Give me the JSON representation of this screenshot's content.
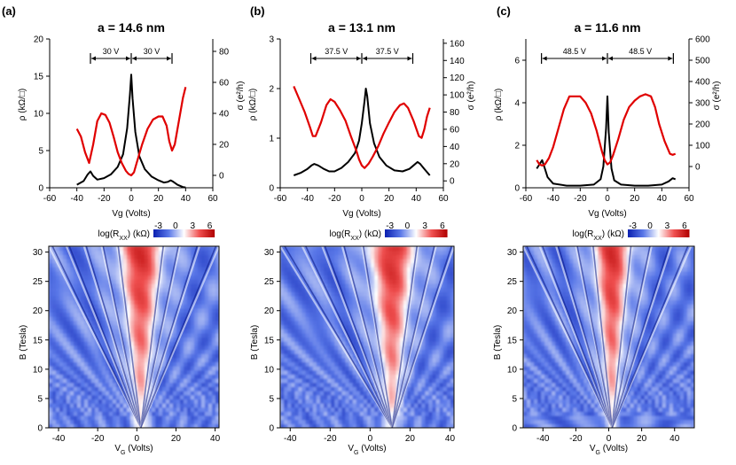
{
  "chart_data": [
    {
      "type": "line",
      "panel": "(a)",
      "title": "a = 14.6 nm",
      "xlabel": "Vg (Volts)",
      "ylabel_left": "ρ (kΩ/□)",
      "ylabel_right": "σ (e²/h)",
      "xlim": [
        -60,
        60
      ],
      "ylim_left": [
        0,
        20
      ],
      "ylim_right": [
        -8,
        88
      ],
      "xticks": [
        -60,
        -40,
        -20,
        0,
        20,
        40,
        60
      ],
      "yticks_left": [
        0,
        5,
        10,
        15,
        20
      ],
      "yticks_right": [
        0,
        20,
        40,
        60,
        80
      ],
      "series": [
        {
          "color": "#000000",
          "axis": "left",
          "x": [
            -40,
            -35,
            -32,
            -30,
            -28,
            -25,
            -20,
            -15,
            -10,
            -6,
            -3,
            -1,
            0,
            1,
            3,
            6,
            10,
            15,
            20,
            24,
            27,
            29,
            31,
            34,
            38,
            40
          ],
          "y": [
            0.4,
            0.9,
            1.8,
            2.2,
            1.6,
            1.1,
            1.3,
            1.8,
            2.8,
            4.5,
            8.0,
            12.5,
            15.2,
            12.0,
            7.5,
            4.2,
            2.5,
            1.5,
            1.0,
            0.7,
            0.8,
            1.0,
            0.8,
            0.4,
            0.1,
            0.05
          ]
        },
        {
          "color": "#e00000",
          "axis": "right",
          "x": [
            -40,
            -37,
            -34,
            -31,
            -28,
            -25,
            -22,
            -19,
            -16,
            -13,
            -10,
            -7,
            -4,
            -2,
            0,
            2,
            4,
            8,
            12,
            16,
            20,
            23,
            26,
            28,
            30,
            32,
            35,
            38,
            40
          ],
          "y": [
            30,
            25,
            15,
            8,
            20,
            35,
            40,
            39,
            34,
            25,
            15,
            8,
            3,
            1,
            0,
            2,
            8,
            20,
            30,
            36,
            38,
            38,
            32,
            22,
            16,
            20,
            35,
            50,
            57
          ]
        }
      ],
      "annotations": [
        {
          "text": "30 V"
        },
        {
          "text": "30 V"
        }
      ]
    },
    {
      "type": "line",
      "panel": "(b)",
      "title": "a = 13.1 nm",
      "xlabel": "Vg (Volts)",
      "ylabel_left": "ρ (kΩ/□)",
      "ylabel_right": "σ (e²/h)",
      "xlim": [
        -60,
        60
      ],
      "ylim_left": [
        0,
        3
      ],
      "ylim_right": [
        -8,
        165
      ],
      "xticks": [
        -60,
        -40,
        -20,
        0,
        20,
        40,
        60
      ],
      "yticks_left": [
        0,
        1,
        2,
        3
      ],
      "yticks_right": [
        0,
        20,
        40,
        60,
        80,
        100,
        120,
        140,
        160
      ],
      "series": [
        {
          "color": "#000000",
          "axis": "left",
          "x": [
            -50,
            -45,
            -40,
            -37,
            -35,
            -32,
            -28,
            -24,
            -20,
            -15,
            -10,
            -5,
            -2,
            0,
            2,
            3,
            4,
            6,
            9,
            13,
            18,
            24,
            30,
            35,
            38,
            41,
            43,
            46,
            50
          ],
          "y": [
            0.25,
            0.3,
            0.38,
            0.45,
            0.48,
            0.45,
            0.38,
            0.33,
            0.33,
            0.4,
            0.52,
            0.7,
            0.95,
            1.3,
            1.75,
            2.0,
            1.85,
            1.3,
            0.9,
            0.62,
            0.45,
            0.35,
            0.33,
            0.38,
            0.45,
            0.52,
            0.48,
            0.38,
            0.25
          ]
        },
        {
          "color": "#e00000",
          "axis": "right",
          "x": [
            -50,
            -46,
            -42,
            -38,
            -36,
            -34,
            -30,
            -26,
            -23,
            -20,
            -16,
            -12,
            -8,
            -4,
            -2,
            0,
            2,
            5,
            8,
            12,
            16,
            20,
            24,
            28,
            31,
            34,
            38,
            42,
            44,
            46,
            48,
            50
          ],
          "y": [
            110,
            95,
            80,
            62,
            52,
            52,
            68,
            88,
            95,
            92,
            82,
            70,
            52,
            35,
            25,
            18,
            15,
            20,
            28,
            40,
            55,
            68,
            80,
            88,
            90,
            85,
            70,
            52,
            50,
            60,
            75,
            85
          ]
        }
      ],
      "annotations": [
        {
          "text": "37.5 V"
        },
        {
          "text": "37.5 V"
        }
      ]
    },
    {
      "type": "line",
      "panel": "(c)",
      "title": "a = 11.6 nm",
      "xlabel": "Vg (Volts)",
      "ylabel_left": "ρ (kΩ/□)",
      "ylabel_right": "σ (e²/h)",
      "xlim": [
        -60,
        60
      ],
      "ylim_left": [
        0,
        7
      ],
      "ylim_right": [
        -100,
        600
      ],
      "xticks": [
        -60,
        -40,
        -20,
        0,
        20,
        40,
        60
      ],
      "yticks_left": [
        0,
        2,
        4,
        6
      ],
      "yticks_right": [
        0,
        100,
        200,
        300,
        400,
        500,
        600
      ],
      "series": [
        {
          "color": "#000000",
          "axis": "left",
          "x": [
            -52,
            -50,
            -48,
            -46,
            -44,
            -40,
            -30,
            -20,
            -10,
            -5,
            -3,
            -1,
            0,
            1,
            3,
            5,
            10,
            20,
            30,
            40,
            45,
            48,
            50
          ],
          "y": [
            0.9,
            1.1,
            1.3,
            0.9,
            0.5,
            0.2,
            0.1,
            0.1,
            0.15,
            0.4,
            1.0,
            2.8,
            4.3,
            2.6,
            0.9,
            0.35,
            0.15,
            0.1,
            0.1,
            0.15,
            0.3,
            0.45,
            0.4
          ]
        },
        {
          "color": "#e00000",
          "axis": "right",
          "x": [
            -52,
            -50,
            -48,
            -46,
            -43,
            -40,
            -36,
            -32,
            -28,
            -24,
            -20,
            -16,
            -12,
            -8,
            -4,
            -2,
            0,
            2,
            4,
            8,
            12,
            16,
            20,
            24,
            28,
            32,
            35,
            38,
            42,
            46,
            48,
            50
          ],
          "y": [
            30,
            10,
            5,
            10,
            40,
            90,
            180,
            270,
            330,
            330,
            330,
            300,
            250,
            170,
            70,
            30,
            10,
            20,
            50,
            130,
            220,
            280,
            310,
            330,
            340,
            330,
            280,
            200,
            120,
            60,
            55,
            60
          ]
        }
      ],
      "annotations": [
        {
          "text": "48.5  V"
        },
        {
          "text": "48.5 V"
        }
      ]
    },
    {
      "type": "heatmap",
      "panel": "(a)",
      "colorbar_label": "log(R",
      "colorbar_sub": "XX",
      "colorbar_unit": ") (kΩ)",
      "colorbar_ticks": [
        "-3",
        "0",
        "3",
        "6"
      ],
      "xlabel": "V",
      "xlabel_sub": "G",
      "xlabel_unit": " (Volts)",
      "ylabel": "B (Tesla)",
      "xlim": [
        -45,
        42
      ],
      "ylim": [
        0,
        31
      ],
      "xticks": [
        -40,
        -20,
        0,
        20,
        40
      ],
      "yticks": [
        0,
        5,
        10,
        15,
        20,
        25,
        30
      ],
      "cnp": 2,
      "fans": [
        -45,
        -36,
        -27,
        -18,
        -10,
        14,
        22,
        32,
        42
      ]
    },
    {
      "type": "heatmap",
      "panel": "(b)",
      "colorbar_label": "log(R",
      "colorbar_sub": "XX",
      "colorbar_unit": ") (kΩ)",
      "colorbar_ticks": [
        "-3",
        "0",
        "3",
        "6"
      ],
      "xlabel": "V",
      "xlabel_sub": "G",
      "xlabel_unit": " (Volts)",
      "ylabel": "B (Tesla)",
      "xlim": [
        -45,
        42
      ],
      "ylim": [
        0,
        31
      ],
      "xticks": [
        -40,
        -20,
        0,
        20,
        40
      ],
      "yticks": [
        0,
        5,
        10,
        15,
        20,
        25,
        30
      ],
      "cnp": 11,
      "fans": [
        -45,
        -34,
        -24,
        -14,
        -4,
        24,
        33,
        42
      ]
    },
    {
      "type": "heatmap",
      "panel": "(c)",
      "colorbar_label": "log(R",
      "colorbar_sub": "XX",
      "colorbar_unit": ") (kΩ)",
      "colorbar_ticks": [
        "-3",
        "0",
        "3",
        "6"
      ],
      "xlabel": "V",
      "xlabel_sub": "G",
      "xlabel_unit": " (Volts)",
      "ylabel": "B (Tesla)",
      "xlim": [
        -52,
        52
      ],
      "ylim": [
        0,
        31
      ],
      "xticks": [
        -40,
        -20,
        0,
        20,
        40
      ],
      "yticks": [
        0,
        5,
        10,
        15,
        20,
        25,
        30
      ],
      "cnp": 2,
      "fans": [
        -52,
        -42,
        -32,
        -20,
        -10,
        14,
        26,
        38,
        50
      ]
    }
  ]
}
